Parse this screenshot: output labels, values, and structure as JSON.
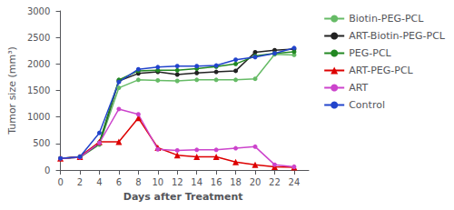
{
  "chart_data": {
    "type": "line",
    "xlabel": "Days after Treatment",
    "ylabel": "Tumor size (mm³)",
    "x": [
      0,
      2,
      4,
      6,
      8,
      10,
      12,
      14,
      16,
      18,
      20,
      22,
      24
    ],
    "series": [
      {
        "name": "Biotin-PEG-PCL",
        "color": "#66bb66",
        "marker": "circle",
        "values": [
          220,
          240,
          480,
          1550,
          1700,
          1690,
          1680,
          1700,
          1700,
          1700,
          1720,
          2180,
          2170
        ]
      },
      {
        "name": "ART-Biotin-PEG-PCL",
        "color": "#222222",
        "marker": "circle",
        "values": [
          220,
          240,
          500,
          1680,
          1820,
          1850,
          1800,
          1830,
          1850,
          1870,
          2220,
          2260,
          2280
        ]
      },
      {
        "name": "PEG-PCL",
        "color": "#228822",
        "marker": "circle",
        "values": [
          220,
          250,
          520,
          1700,
          1870,
          1880,
          1880,
          1910,
          1950,
          2000,
          2150,
          2200,
          2230
        ]
      },
      {
        "name": "ART-PEG-PCL",
        "color": "#dd0000",
        "marker": "triangle",
        "values": [
          220,
          250,
          530,
          530,
          980,
          420,
          280,
          250,
          250,
          150,
          100,
          60,
          50
        ]
      },
      {
        "name": "ART",
        "color": "#cc44cc",
        "marker": "circle",
        "values": [
          220,
          240,
          510,
          1150,
          1050,
          390,
          370,
          380,
          380,
          410,
          440,
          100,
          60
        ]
      },
      {
        "name": "Control",
        "color": "#2244cc",
        "marker": "circle",
        "values": [
          220,
          250,
          700,
          1660,
          1900,
          1940,
          1960,
          1960,
          1970,
          2080,
          2130,
          2200,
          2300
        ]
      }
    ],
    "xlim": [
      -0.3,
      25.5
    ],
    "xticks": [
      0,
      2,
      4,
      6,
      8,
      10,
      12,
      14,
      16,
      18,
      20,
      22,
      24
    ],
    "ylim": [
      0,
      3000
    ],
    "yticks": [
      0,
      500,
      1000,
      1500,
      2000,
      2500,
      3000
    ],
    "grid": false,
    "legend": "right"
  }
}
